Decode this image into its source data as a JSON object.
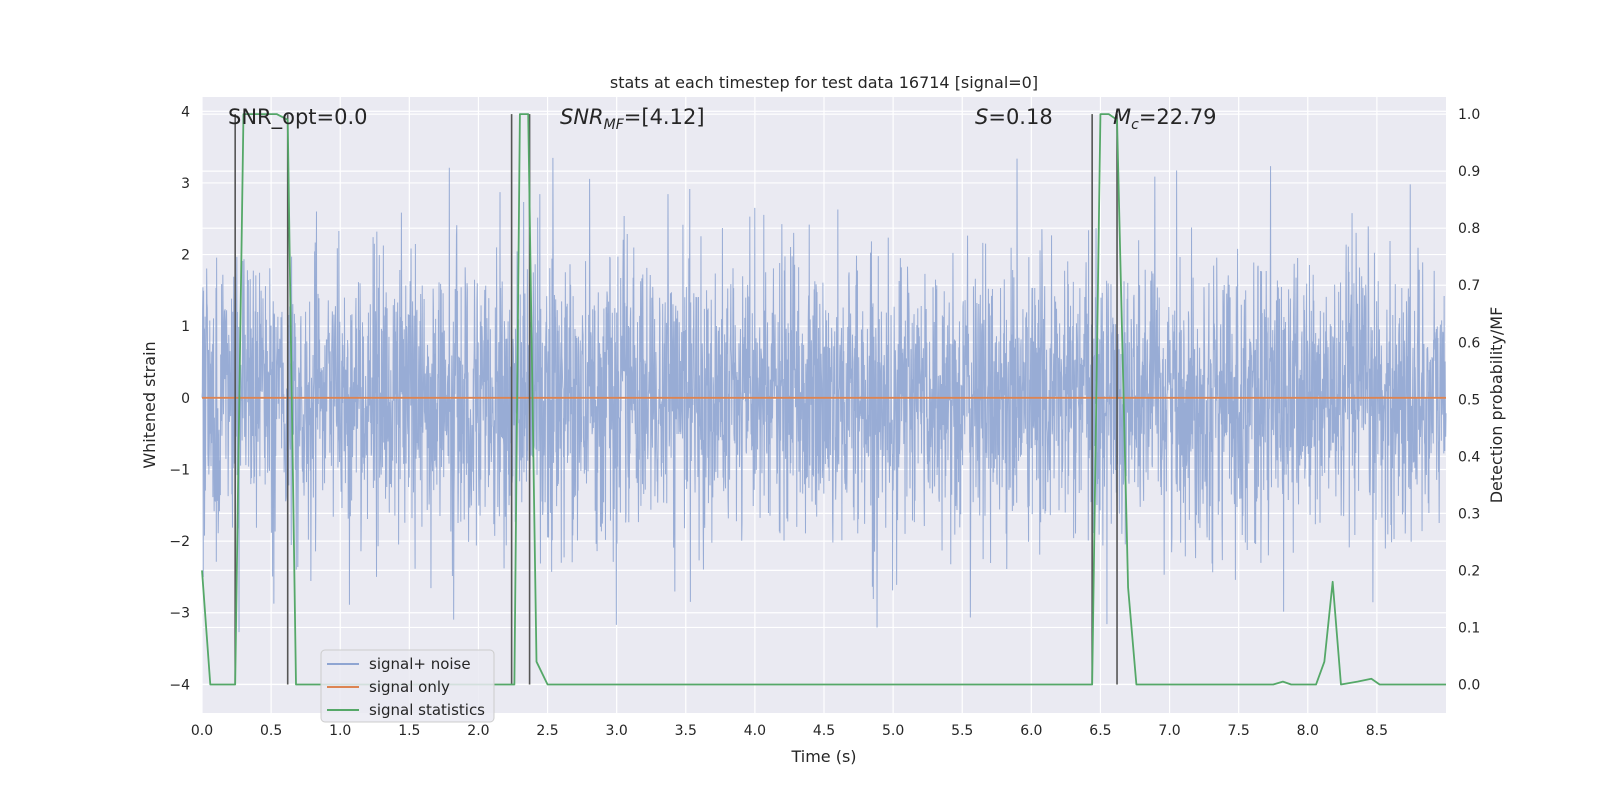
{
  "chart_data": {
    "type": "line",
    "title": "stats at each timestep for test data 16714 [signal=0]",
    "xlabel": "Time (s)",
    "ylabel": "Whitened strain",
    "ylabel_right": "Detection probability/MF",
    "xlim": [
      0,
      9
    ],
    "ylim": [
      -4.4,
      4.2
    ],
    "ylim_right": [
      -0.05,
      1.03
    ],
    "x_ticks": [
      "0.0",
      "0.5",
      "1.0",
      "1.5",
      "2.0",
      "2.5",
      "3.0",
      "3.5",
      "4.0",
      "4.5",
      "5.0",
      "5.5",
      "6.0",
      "6.5",
      "7.0",
      "7.5",
      "8.0",
      "8.5"
    ],
    "y_ticks": [
      "4",
      "3",
      "2",
      "1",
      "0",
      "−1",
      "−2",
      "−3",
      "−4"
    ],
    "y_ticks_right": [
      "1.0",
      "0.9",
      "0.8",
      "0.7",
      "0.6",
      "0.5",
      "0.4",
      "0.3",
      "0.2",
      "0.1",
      "0.0"
    ],
    "grid": true,
    "legend_position": "lower-left",
    "annotations": {
      "snr_opt": "SNR_opt=0.0",
      "snr_mf_base": "SNR",
      "snr_mf_sub": "MF",
      "snr_mf_value": "=[4.12]",
      "s_symbol": "S",
      "s_value": "=0.18",
      "mc_symbol": "M",
      "mc_sub": "c",
      "mc_value": "=22.79"
    },
    "series": [
      {
        "name": "signal+ noise",
        "color": "#8fa5d2",
        "description": "whitened strain noise, amplitude roughly -3.5 to 3.4"
      },
      {
        "name": "signal only",
        "color": "#dd8452",
        "x": [
          0,
          9
        ],
        "y": [
          0,
          0
        ]
      },
      {
        "name": "signal statistics",
        "color": "#55a868",
        "axis": "right",
        "x": [
          0,
          0.06,
          0.18,
          0.24,
          0.3,
          0.42,
          0.54,
          0.62,
          0.68,
          1.5,
          2.26,
          2.3,
          2.36,
          2.42,
          2.5,
          6.0,
          6.44,
          6.5,
          6.56,
          6.62,
          6.7,
          6.76,
          7.4,
          7.75,
          7.82,
          7.88,
          8.06,
          8.12,
          8.18,
          8.24,
          8.36,
          8.46,
          8.52,
          9.0
        ],
        "y": [
          0.2,
          0.0,
          0.0,
          0.0,
          1.0,
          1.0,
          1.0,
          0.99,
          0.0,
          0.0,
          0.0,
          1.0,
          1.0,
          0.04,
          0.0,
          0.0,
          0.0,
          1.0,
          1.0,
          0.99,
          0.17,
          0.0,
          0.0,
          0.0,
          0.005,
          0.0,
          0.0,
          0.04,
          0.18,
          0.0,
          0.005,
          0.01,
          0.0,
          0.0
        ]
      }
    ],
    "vlines": [
      {
        "x": 0.24,
        "color": "#555555"
      },
      {
        "x": 0.62,
        "color": "#555555"
      },
      {
        "x": 2.24,
        "color": "#555555"
      },
      {
        "x": 2.37,
        "color": "#555555"
      },
      {
        "x": 6.44,
        "color": "#555555"
      },
      {
        "x": 6.62,
        "color": "#555555"
      }
    ],
    "colors": {
      "plot_bg": "#eaeaf2",
      "grid": "#ffffff",
      "text": "#262626"
    }
  }
}
